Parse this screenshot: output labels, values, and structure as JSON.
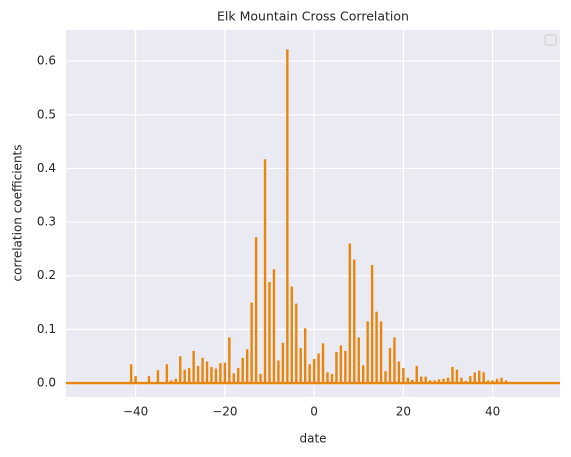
{
  "chart_data": {
    "type": "xcorr",
    "title": "Elk Mountain Cross Correlation",
    "x_label": "date",
    "y_label": "correlation coefficients",
    "x": [
      -41,
      -40,
      -39,
      -38,
      -37,
      -36,
      -35,
      -34,
      -33,
      -32,
      -31,
      -30,
      -29,
      -28,
      -27,
      -26,
      -25,
      -24,
      -23,
      -22,
      -21,
      -20,
      -19,
      -18,
      -17,
      -16,
      -15,
      -14,
      -13,
      -12,
      -11,
      -10,
      -9,
      -8,
      -7,
      -6,
      -5,
      -4,
      -3,
      -2,
      -1,
      0,
      1,
      2,
      3,
      4,
      5,
      6,
      7,
      8,
      9,
      10,
      11,
      12,
      13,
      14,
      15,
      16,
      17,
      18,
      19,
      20,
      21,
      22,
      23,
      24,
      25,
      26,
      27,
      28,
      29,
      30,
      31,
      32,
      33,
      34,
      35,
      36,
      37,
      38,
      39,
      40,
      41,
      42,
      43,
      44
    ],
    "values": [
      0.035,
      0.013,
      0,
      0,
      0.013,
      0,
      0.024,
      0,
      0.035,
      0.005,
      0.008,
      0.05,
      0.025,
      0.028,
      0.06,
      0.032,
      0.047,
      0.04,
      0.03,
      0.027,
      0.037,
      0.038,
      0.085,
      0.018,
      0.028,
      0.047,
      0.063,
      0.15,
      0.272,
      0.017,
      0.417,
      0.188,
      0.212,
      0.042,
      0.075,
      0.622,
      0.18,
      0.148,
      0.065,
      0.102,
      0.035,
      0.045,
      0.055,
      0.074,
      0.02,
      0.017,
      0.058,
      0.07,
      0.06,
      0.26,
      0.23,
      0.085,
      0.033,
      0.115,
      0.22,
      0.133,
      0.115,
      0.022,
      0.065,
      0.085,
      0.04,
      0.028,
      0.01,
      0.006,
      0.032,
      0.012,
      0.012,
      0.005,
      0.005,
      0.007,
      0.008,
      0.01,
      0.03,
      0.025,
      0.01,
      0.004,
      0.013,
      0.02,
      0.023,
      0.02,
      0.005,
      0.005,
      0.008,
      0.01,
      0.005,
      0.002
    ],
    "color": "#e8850c",
    "xlim": [
      -55.6,
      55.1
    ],
    "ylim": [
      -0.026,
      0.658
    ],
    "xticks": [
      {
        "value": -40,
        "label": "−40"
      },
      {
        "value": -20,
        "label": "−20"
      },
      0,
      20,
      40
    ],
    "yticks": [
      {
        "value": 0,
        "label": "0.0"
      },
      0.1,
      0.2,
      0.3,
      0.4,
      0.5,
      0.6
    ],
    "grid": true,
    "legend": "upper right"
  }
}
